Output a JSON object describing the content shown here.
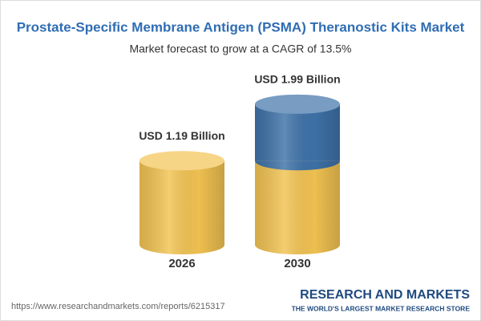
{
  "chart_data": {
    "type": "bar",
    "title": "Prostate-Specific Membrane Antigen (PSMA) Theranostic Kits Market",
    "subtitle": "Market forecast to grow at a CAGR of 13.5%",
    "categories": [
      "2026",
      "2030"
    ],
    "values": [
      1.19,
      1.99
    ],
    "value_labels": [
      "USD 1.19 Billion",
      "USD 1.99 Billion"
    ],
    "colors": [
      "#f2c352",
      "#3e72a8"
    ],
    "source": "https://www.researchandmarkets.com/reports/6215317",
    "brand": "RESEARCH AND MARKETS",
    "tagline": "THE WORLD'S LARGEST MARKET RESEARCH STORE"
  }
}
